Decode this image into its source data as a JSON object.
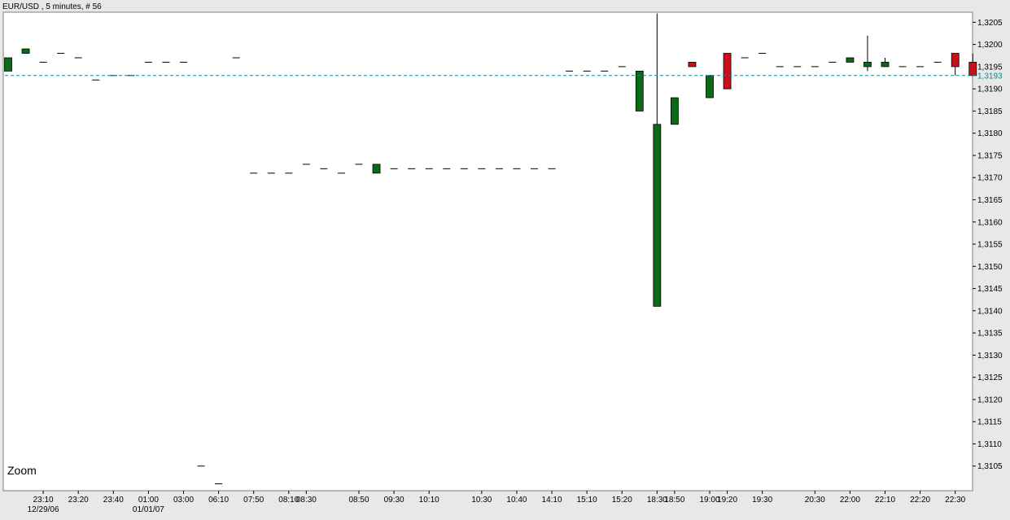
{
  "title": "EUR/USD , 5 minutes, # 56",
  "zoom_label": "Zoom",
  "colors": {
    "up": "#0b6b14",
    "down": "#c8101a",
    "wick": "#000000",
    "last_line": "#008b8b",
    "plot_bg": "#ffffff",
    "frame": "#808080"
  },
  "chart_data": {
    "type": "candlestick",
    "title": "EUR/USD , 5 minutes, # 56",
    "ylim": [
      1.31,
      1.3208
    ],
    "y_ticks": [
      1.3105,
      1.311,
      1.3115,
      1.312,
      1.3125,
      1.313,
      1.3135,
      1.314,
      1.3145,
      1.315,
      1.3155,
      1.316,
      1.3165,
      1.317,
      1.3175,
      1.318,
      1.3185,
      1.319,
      1.3195,
      1.32,
      1.3205
    ],
    "y_tick_labels": [
      "1,3105",
      "1,3110",
      "1,3115",
      "1,3120",
      "1,3125",
      "1,3130",
      "1,3135",
      "1,3140",
      "1,3145",
      "1,3150",
      "1,3155",
      "1,3160",
      "1,3165",
      "1,3170",
      "1,3175",
      "1,3180",
      "1,3185",
      "1,3190",
      "1,3195",
      "1,3200",
      "1,3205"
    ],
    "last_price": 1.3193,
    "last_price_label": "1,3193",
    "x_tick_labels": [
      {
        "label": "23:10",
        "bar": 2
      },
      {
        "label": "23:20",
        "bar": 4
      },
      {
        "label": "23:40",
        "bar": 6
      },
      {
        "label": "01:00",
        "bar": 8
      },
      {
        "label": "03:00",
        "bar": 10
      },
      {
        "label": "06:10",
        "bar": 12
      },
      {
        "label": "07:50",
        "bar": 14
      },
      {
        "label": "08:10",
        "bar": 16
      },
      {
        "label": "08:30",
        "bar": 17
      },
      {
        "label": "08:50",
        "bar": 20
      },
      {
        "label": "09:30",
        "bar": 22
      },
      {
        "label": "10:10",
        "bar": 24
      },
      {
        "label": "10:30",
        "bar": 27
      },
      {
        "label": "10:40",
        "bar": 29
      },
      {
        "label": "14:10",
        "bar": 31
      },
      {
        "label": "15:10",
        "bar": 33
      },
      {
        "label": "15:20",
        "bar": 35
      },
      {
        "label": "18:30",
        "bar": 37
      },
      {
        "label": "18:50",
        "bar": 38
      },
      {
        "label": "19:00",
        "bar": 40
      },
      {
        "label": "19:20",
        "bar": 41
      },
      {
        "label": "19:30",
        "bar": 43
      },
      {
        "label": "20:30",
        "bar": 46
      },
      {
        "label": "22:00",
        "bar": 48
      },
      {
        "label": "22:10",
        "bar": 50
      },
      {
        "label": "22:20",
        "bar": 52
      },
      {
        "label": "22:30",
        "bar": 54
      }
    ],
    "x_date_labels": [
      {
        "label": "12/29/06",
        "bar": 2
      },
      {
        "label": "01/01/07",
        "bar": 8
      }
    ],
    "candles": [
      {
        "o": 1.3194,
        "h": 1.3197,
        "l": 1.3194,
        "c": 1.3197
      },
      {
        "o": 1.3198,
        "h": 1.3199,
        "l": 1.3198,
        "c": 1.3199
      },
      {
        "o": 1.3196,
        "h": 1.3196,
        "l": 1.3196,
        "c": 1.3196
      },
      {
        "o": 1.3198,
        "h": 1.3198,
        "l": 1.3198,
        "c": 1.3198
      },
      {
        "o": 1.3197,
        "h": 1.3197,
        "l": 1.3197,
        "c": 1.3197
      },
      {
        "o": 1.3192,
        "h": 1.3192,
        "l": 1.3192,
        "c": 1.3192
      },
      {
        "o": 1.3193,
        "h": 1.3193,
        "l": 1.3193,
        "c": 1.3193
      },
      {
        "o": 1.3193,
        "h": 1.3193,
        "l": 1.3193,
        "c": 1.3193
      },
      {
        "o": 1.3196,
        "h": 1.3196,
        "l": 1.3196,
        "c": 1.3196
      },
      {
        "o": 1.3196,
        "h": 1.3196,
        "l": 1.3196,
        "c": 1.3196
      },
      {
        "o": 1.3196,
        "h": 1.3196,
        "l": 1.3196,
        "c": 1.3196
      },
      {
        "o": 1.3105,
        "h": 1.3105,
        "l": 1.3105,
        "c": 1.3105
      },
      {
        "o": 1.3101,
        "h": 1.3101,
        "l": 1.3101,
        "c": 1.3101
      },
      {
        "o": 1.3197,
        "h": 1.3197,
        "l": 1.3197,
        "c": 1.3197
      },
      {
        "o": 1.3171,
        "h": 1.3171,
        "l": 1.3171,
        "c": 1.3171
      },
      {
        "o": 1.3171,
        "h": 1.3171,
        "l": 1.3171,
        "c": 1.3171
      },
      {
        "o": 1.3171,
        "h": 1.3171,
        "l": 1.3171,
        "c": 1.3171
      },
      {
        "o": 1.3173,
        "h": 1.3173,
        "l": 1.3173,
        "c": 1.3173
      },
      {
        "o": 1.3172,
        "h": 1.3172,
        "l": 1.3172,
        "c": 1.3172
      },
      {
        "o": 1.3171,
        "h": 1.3171,
        "l": 1.3171,
        "c": 1.3171
      },
      {
        "o": 1.3173,
        "h": 1.3173,
        "l": 1.3173,
        "c": 1.3173
      },
      {
        "o": 1.3171,
        "h": 1.3173,
        "l": 1.3171,
        "c": 1.3173
      },
      {
        "o": 1.3172,
        "h": 1.3172,
        "l": 1.3172,
        "c": 1.3172
      },
      {
        "o": 1.3172,
        "h": 1.3172,
        "l": 1.3172,
        "c": 1.3172
      },
      {
        "o": 1.3172,
        "h": 1.3172,
        "l": 1.3172,
        "c": 1.3172
      },
      {
        "o": 1.3172,
        "h": 1.3172,
        "l": 1.3172,
        "c": 1.3172
      },
      {
        "o": 1.3172,
        "h": 1.3172,
        "l": 1.3172,
        "c": 1.3172
      },
      {
        "o": 1.3172,
        "h": 1.3172,
        "l": 1.3172,
        "c": 1.3172
      },
      {
        "o": 1.3172,
        "h": 1.3172,
        "l": 1.3172,
        "c": 1.3172
      },
      {
        "o": 1.3172,
        "h": 1.3172,
        "l": 1.3172,
        "c": 1.3172
      },
      {
        "o": 1.3172,
        "h": 1.3172,
        "l": 1.3172,
        "c": 1.3172
      },
      {
        "o": 1.3172,
        "h": 1.3172,
        "l": 1.3172,
        "c": 1.3172
      },
      {
        "o": 1.3194,
        "h": 1.3194,
        "l": 1.3194,
        "c": 1.3194
      },
      {
        "o": 1.3194,
        "h": 1.3194,
        "l": 1.3194,
        "c": 1.3194
      },
      {
        "o": 1.3194,
        "h": 1.3194,
        "l": 1.3194,
        "c": 1.3194
      },
      {
        "o": 1.3195,
        "h": 1.3195,
        "l": 1.3195,
        "c": 1.3195
      },
      {
        "o": 1.3185,
        "h": 1.3194,
        "l": 1.3185,
        "c": 1.3194
      },
      {
        "o": 1.3141,
        "h": 1.3207,
        "l": 1.3141,
        "c": 1.3182
      },
      {
        "o": 1.3182,
        "h": 1.3188,
        "l": 1.3182,
        "c": 1.3188
      },
      {
        "o": 1.3196,
        "h": 1.3196,
        "l": 1.3195,
        "c": 1.3195
      },
      {
        "o": 1.3188,
        "h": 1.3193,
        "l": 1.3188,
        "c": 1.3193
      },
      {
        "o": 1.3198,
        "h": 1.3198,
        "l": 1.319,
        "c": 1.319
      },
      {
        "o": 1.3197,
        "h": 1.3197,
        "l": 1.3197,
        "c": 1.3197
      },
      {
        "o": 1.3198,
        "h": 1.3198,
        "l": 1.3198,
        "c": 1.3198
      },
      {
        "o": 1.3195,
        "h": 1.3195,
        "l": 1.3195,
        "c": 1.3195
      },
      {
        "o": 1.3195,
        "h": 1.3195,
        "l": 1.3195,
        "c": 1.3195
      },
      {
        "o": 1.3195,
        "h": 1.3195,
        "l": 1.3195,
        "c": 1.3195
      },
      {
        "o": 1.3196,
        "h": 1.3196,
        "l": 1.3196,
        "c": 1.3196
      },
      {
        "o": 1.3196,
        "h": 1.3197,
        "l": 1.3196,
        "c": 1.3197
      },
      {
        "o": 1.3195,
        "h": 1.3202,
        "l": 1.3194,
        "c": 1.3196
      },
      {
        "o": 1.3195,
        "h": 1.3197,
        "l": 1.3195,
        "c": 1.3196
      },
      {
        "o": 1.3195,
        "h": 1.3195,
        "l": 1.3195,
        "c": 1.3195
      },
      {
        "o": 1.3195,
        "h": 1.3195,
        "l": 1.3195,
        "c": 1.3195
      },
      {
        "o": 1.3196,
        "h": 1.3196,
        "l": 1.3196,
        "c": 1.3196
      },
      {
        "o": 1.3198,
        "h": 1.3198,
        "l": 1.3193,
        "c": 1.3195
      },
      {
        "o": 1.3196,
        "h": 1.3198,
        "l": 1.3193,
        "c": 1.3193
      }
    ]
  }
}
